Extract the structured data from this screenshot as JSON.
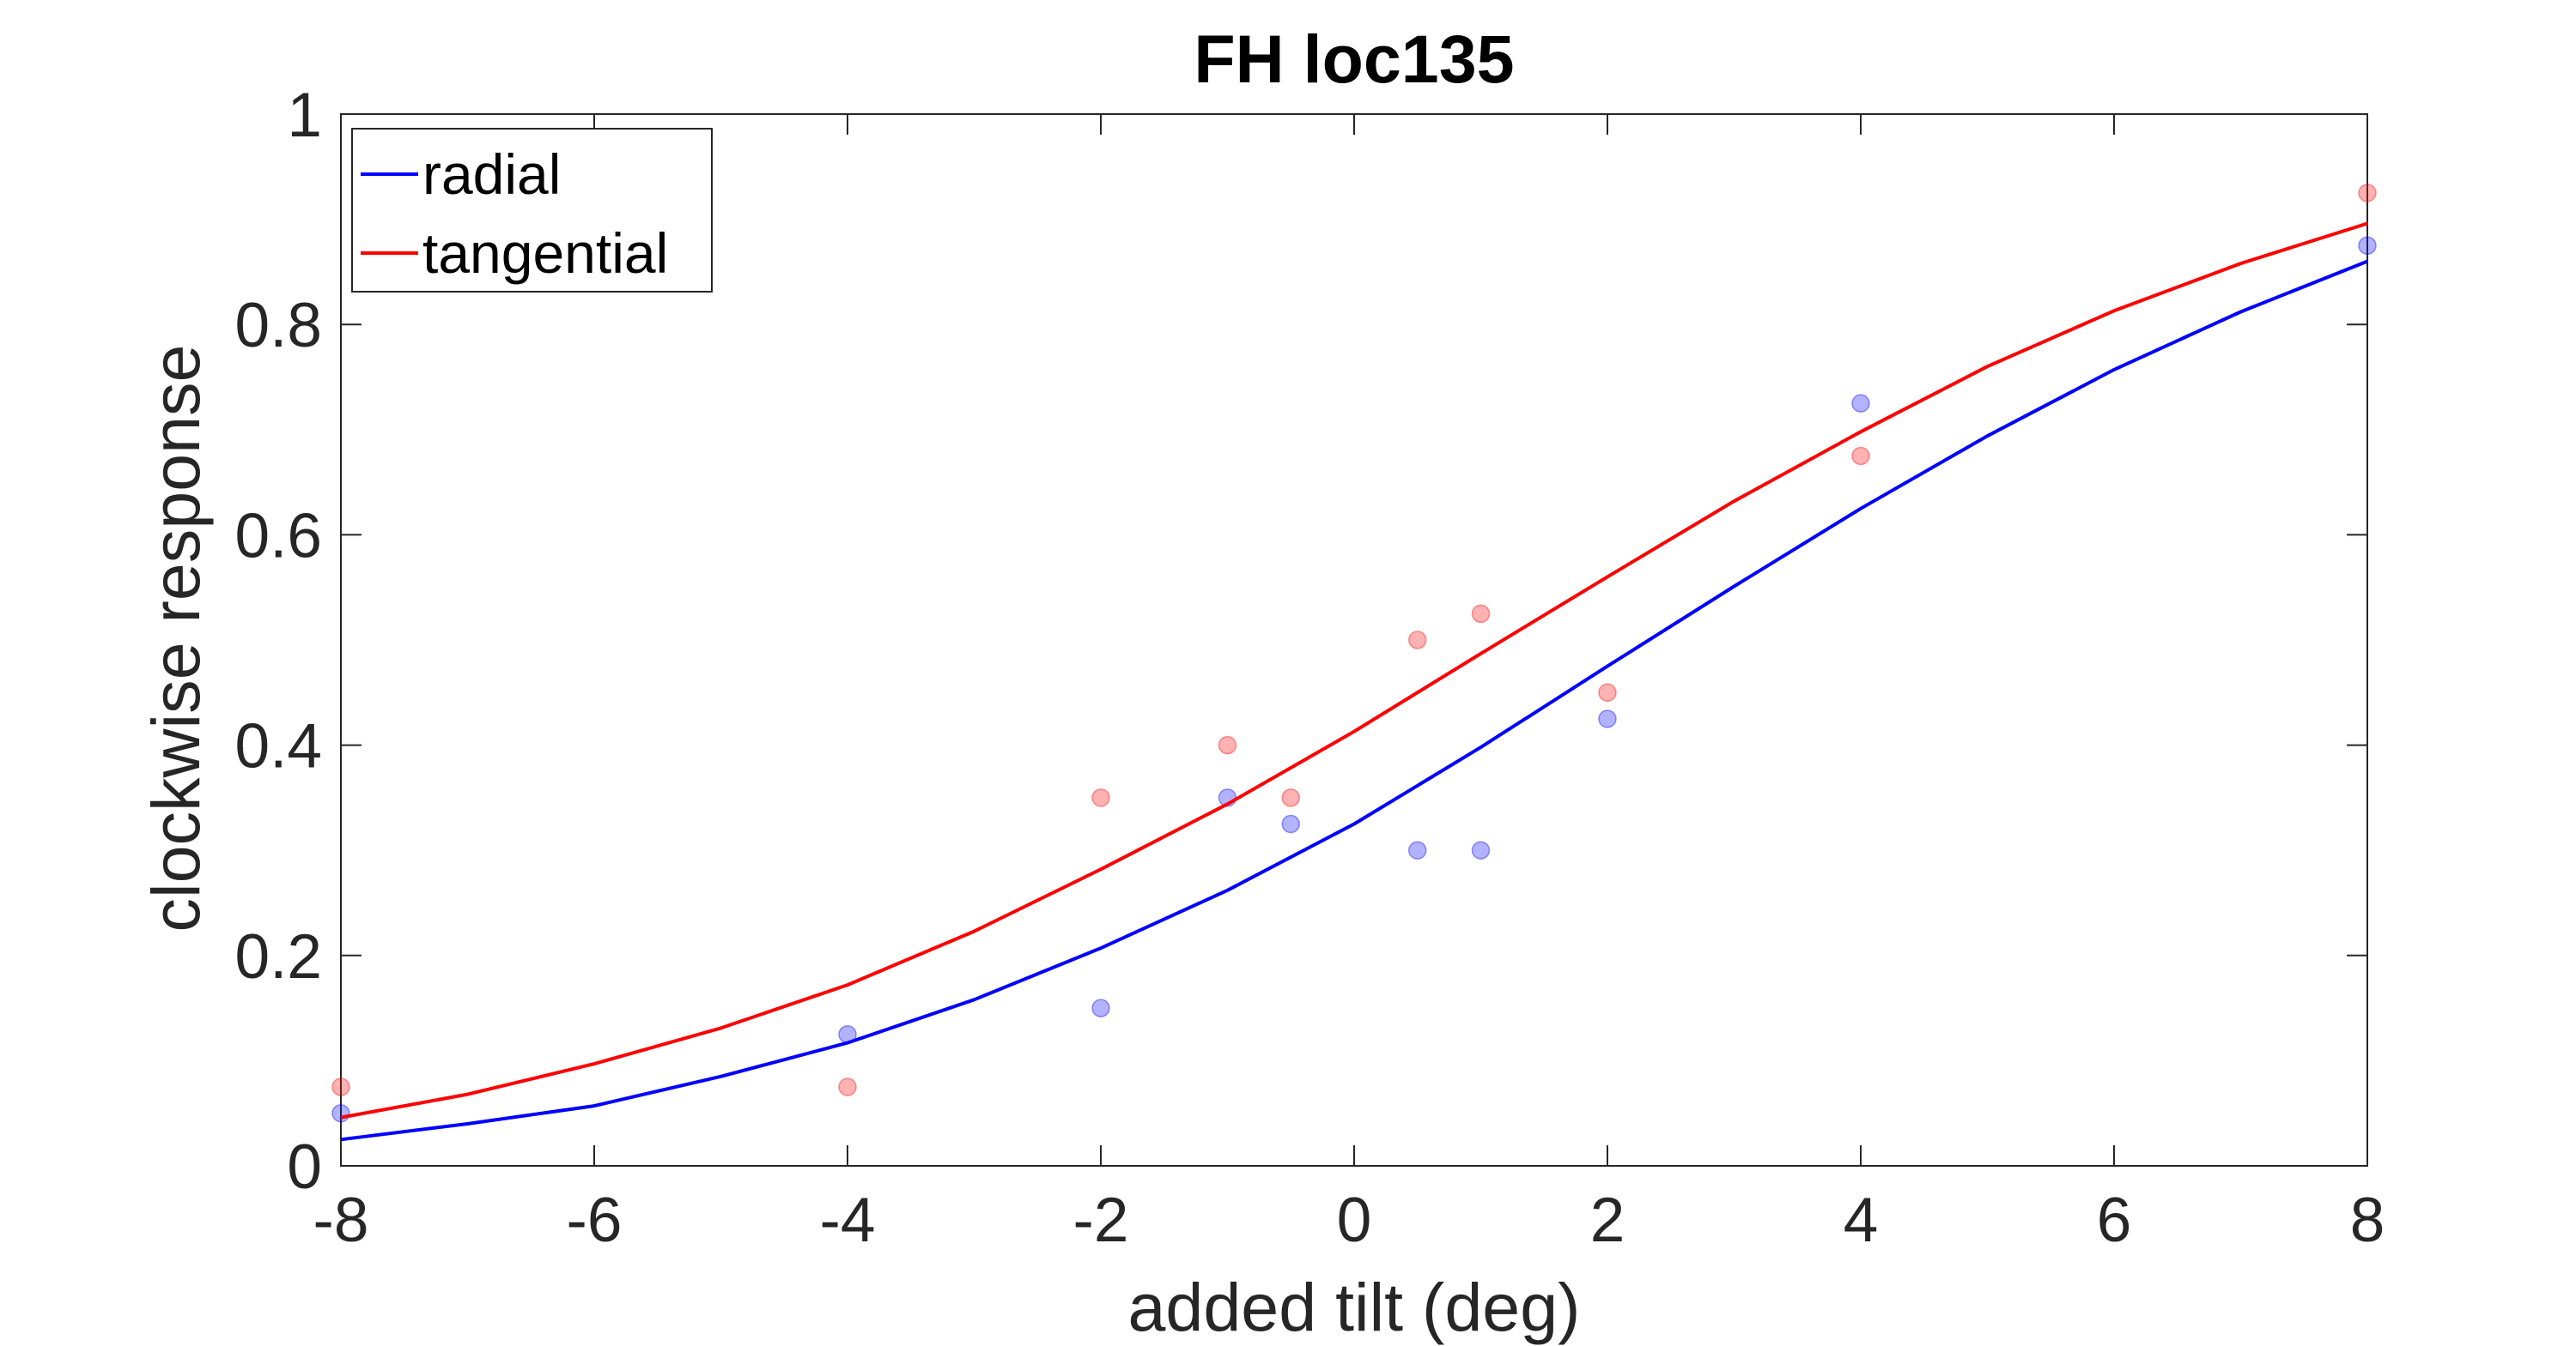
{
  "chart_data": {
    "type": "scatter",
    "title": "FH loc135",
    "xlabel": "added tilt (deg)",
    "ylabel": "clockwise response",
    "xlim": [
      -8,
      8
    ],
    "ylim": [
      0,
      1
    ],
    "xticks": [
      -8,
      -6,
      -4,
      -2,
      0,
      2,
      4,
      6,
      8
    ],
    "yticks": [
      0,
      0.2,
      0.4,
      0.6,
      0.8,
      1
    ],
    "xtick_labels": [
      "-8",
      "-6",
      "-4",
      "-2",
      "0",
      "2",
      "4",
      "6",
      "8"
    ],
    "ytick_labels": [
      "0",
      "0.2",
      "0.4",
      "0.6",
      "0.8",
      "1"
    ],
    "grid": false,
    "legend_position": "top-left",
    "series": [
      {
        "name": "radial",
        "color": "#0000ff",
        "points": [
          {
            "x": -8,
            "y": 0.05
          },
          {
            "x": -4,
            "y": 0.125
          },
          {
            "x": -2,
            "y": 0.15
          },
          {
            "x": -1,
            "y": 0.35
          },
          {
            "x": -0.5,
            "y": 0.325
          },
          {
            "x": 0.5,
            "y": 0.3
          },
          {
            "x": 1,
            "y": 0.3
          },
          {
            "x": 2,
            "y": 0.425
          },
          {
            "x": 4,
            "y": 0.725
          },
          {
            "x": 8,
            "y": 0.875
          }
        ],
        "fit": {
          "x": [
            -8,
            -7,
            -6,
            -5,
            -4,
            -3,
            -2,
            -1,
            0,
            1,
            2,
            3,
            4,
            5,
            6,
            7,
            8
          ],
          "y": [
            0.025,
            0.04,
            0.057,
            0.085,
            0.117,
            0.158,
            0.207,
            0.262,
            0.325,
            0.398,
            0.475,
            0.551,
            0.625,
            0.694,
            0.757,
            0.812,
            0.86
          ]
        }
      },
      {
        "name": "tangential",
        "color": "#ff0000",
        "points": [
          {
            "x": -8,
            "y": 0.075
          },
          {
            "x": -4,
            "y": 0.075
          },
          {
            "x": -2,
            "y": 0.35
          },
          {
            "x": -1,
            "y": 0.4
          },
          {
            "x": -0.5,
            "y": 0.35
          },
          {
            "x": 0.5,
            "y": 0.5
          },
          {
            "x": 1,
            "y": 0.525
          },
          {
            "x": 2,
            "y": 0.45
          },
          {
            "x": 4,
            "y": 0.675
          },
          {
            "x": 8,
            "y": 0.925
          }
        ],
        "fit": {
          "x": [
            -8,
            -7,
            -6,
            -5,
            -4,
            -3,
            -2,
            -1,
            0,
            1,
            2,
            3,
            4,
            5,
            6,
            7,
            8
          ],
          "y": [
            0.046,
            0.068,
            0.097,
            0.131,
            0.172,
            0.223,
            0.282,
            0.344,
            0.413,
            0.487,
            0.56,
            0.632,
            0.698,
            0.76,
            0.813,
            0.858,
            0.896
          ]
        }
      }
    ]
  }
}
